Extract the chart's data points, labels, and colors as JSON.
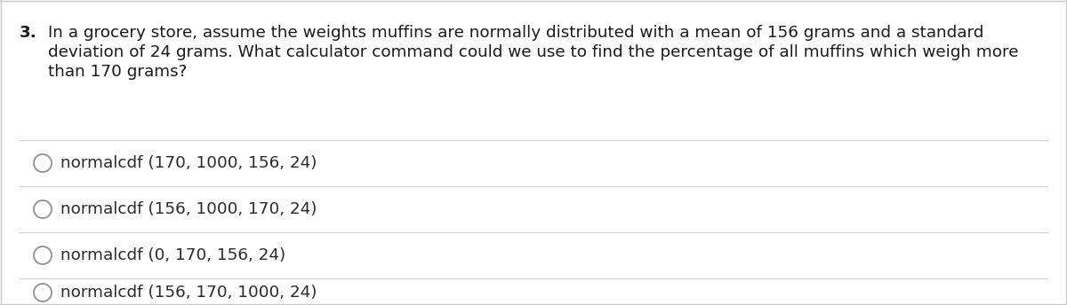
{
  "background_color": "#ffffff",
  "border_color": "#c8c8c8",
  "question_number": "3.",
  "question_lines": [
    "In a grocery store, assume the weights muffins are normally distributed with a mean of 156 grams and a standard",
    "deviation of 24 grams. What calculator command could we use to find the percentage of all muffins which weigh more",
    "than 170 grams?"
  ],
  "options": [
    "normalcdf (170, 1000, 156, 24)",
    "normalcdf (156, 1000, 170, 24)",
    "normalcdf (0, 170, 156, 24)",
    "normalcdf (156, 170, 1000, 24)"
  ],
  "text_color": "#1a1a1a",
  "option_color": "#2a2a2a",
  "divider_color": "#d0d0d0",
  "question_fontsize": 13.2,
  "option_fontsize": 13.2,
  "circle_color": "#909090"
}
